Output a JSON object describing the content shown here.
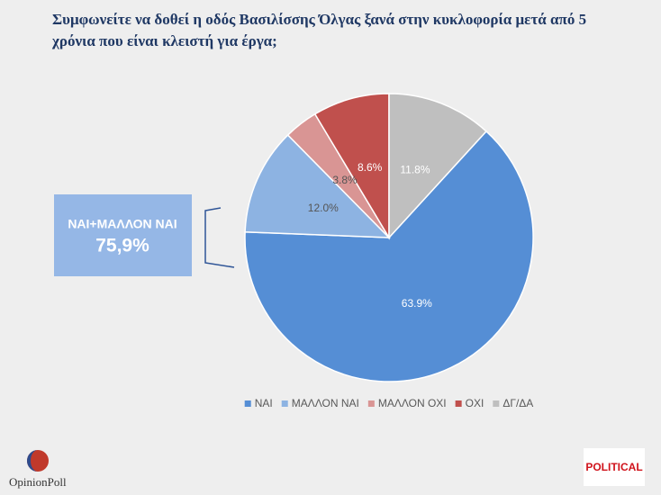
{
  "chart_data": {
    "type": "pie",
    "title": "Συμφωνείτε να δοθεί η οδός Βασιλίσσης Όλγας ξανά στην κυκλοφορία μετά από 5 χρόνια που είναι κλειστή για έργα;",
    "categories": [
      "ΝΑΙ",
      "ΜΑΛΛΟΝ ΝΑΙ",
      "ΜΑΛΛΟΝ ΟΧΙ",
      "ΟΧΙ",
      "ΔΓ/ΔΑ"
    ],
    "values": [
      63.9,
      12.0,
      3.8,
      8.6,
      11.8
    ],
    "value_labels": [
      "63.9%",
      "12.0%",
      "3.8%",
      "8.6%",
      "11.8%"
    ],
    "colors": [
      "#558ed5",
      "#8db3e2",
      "#d99594",
      "#c0504d",
      "#bfbfbf"
    ],
    "legend": "bottom"
  },
  "annotation": {
    "label": "ΝΑΙ+ΜΑΛΛΟΝ ΝΑΙ",
    "value": "75,9%"
  },
  "logos": {
    "left": "OpinionPoll",
    "right": "POLITICAL"
  }
}
